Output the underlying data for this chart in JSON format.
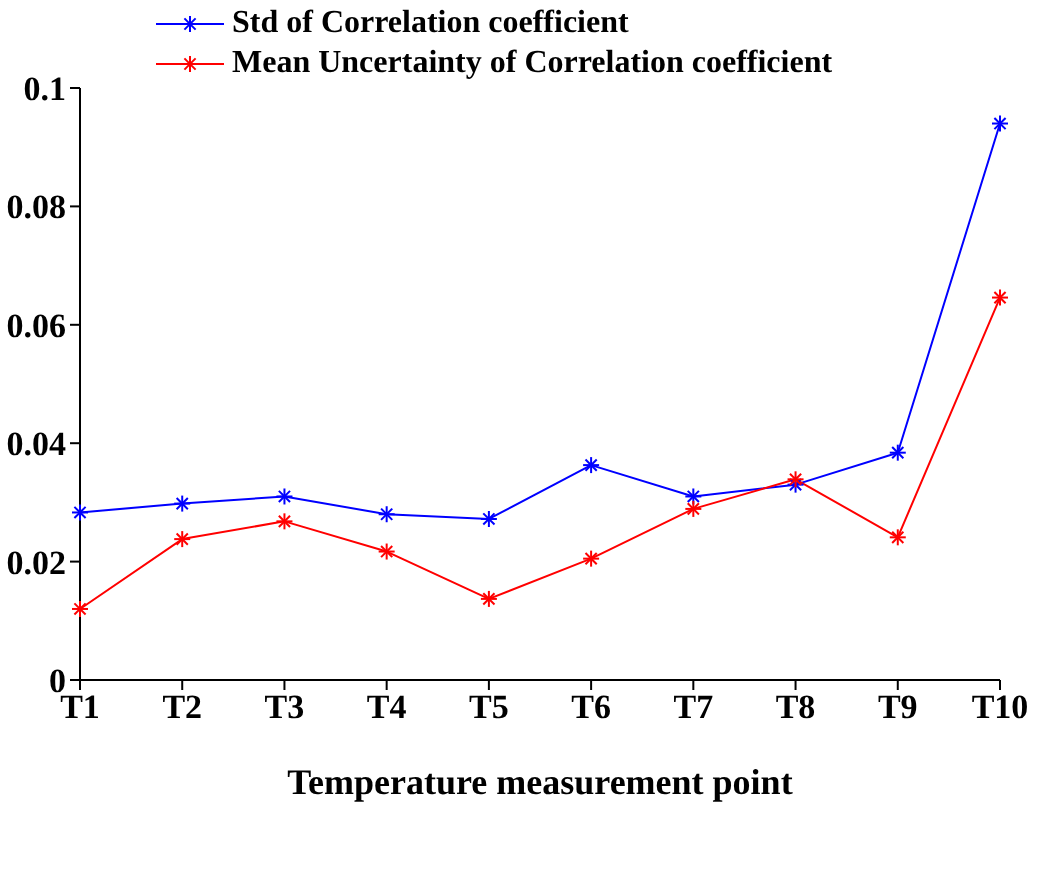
{
  "chart_data": {
    "type": "line",
    "xlabel": "Temperature measurement point",
    "categories": [
      "T1",
      "T2",
      "T3",
      "T4",
      "T5",
      "T6",
      "T7",
      "T8",
      "T9",
      "T10"
    ],
    "series": [
      {
        "name": "Std of Correlation coefficient",
        "color": "#0000ff",
        "values": [
          0.0283,
          0.0298,
          0.031,
          0.028,
          0.0272,
          0.0363,
          0.031,
          0.033,
          0.0384,
          0.094
        ]
      },
      {
        "name": "Mean Uncertainty of Correlation coefficient",
        "color": "#ff0000",
        "values": [
          0.012,
          0.0238,
          0.0268,
          0.0217,
          0.0137,
          0.0205,
          0.0289,
          0.0339,
          0.0241,
          0.0646
        ]
      }
    ],
    "ylim": [
      0,
      0.1
    ],
    "yticks": [
      0,
      0.02,
      0.04,
      0.06,
      0.08,
      0.1
    ],
    "grid": false,
    "legend": "top",
    "marker": "cross",
    "line_style": "solid"
  }
}
